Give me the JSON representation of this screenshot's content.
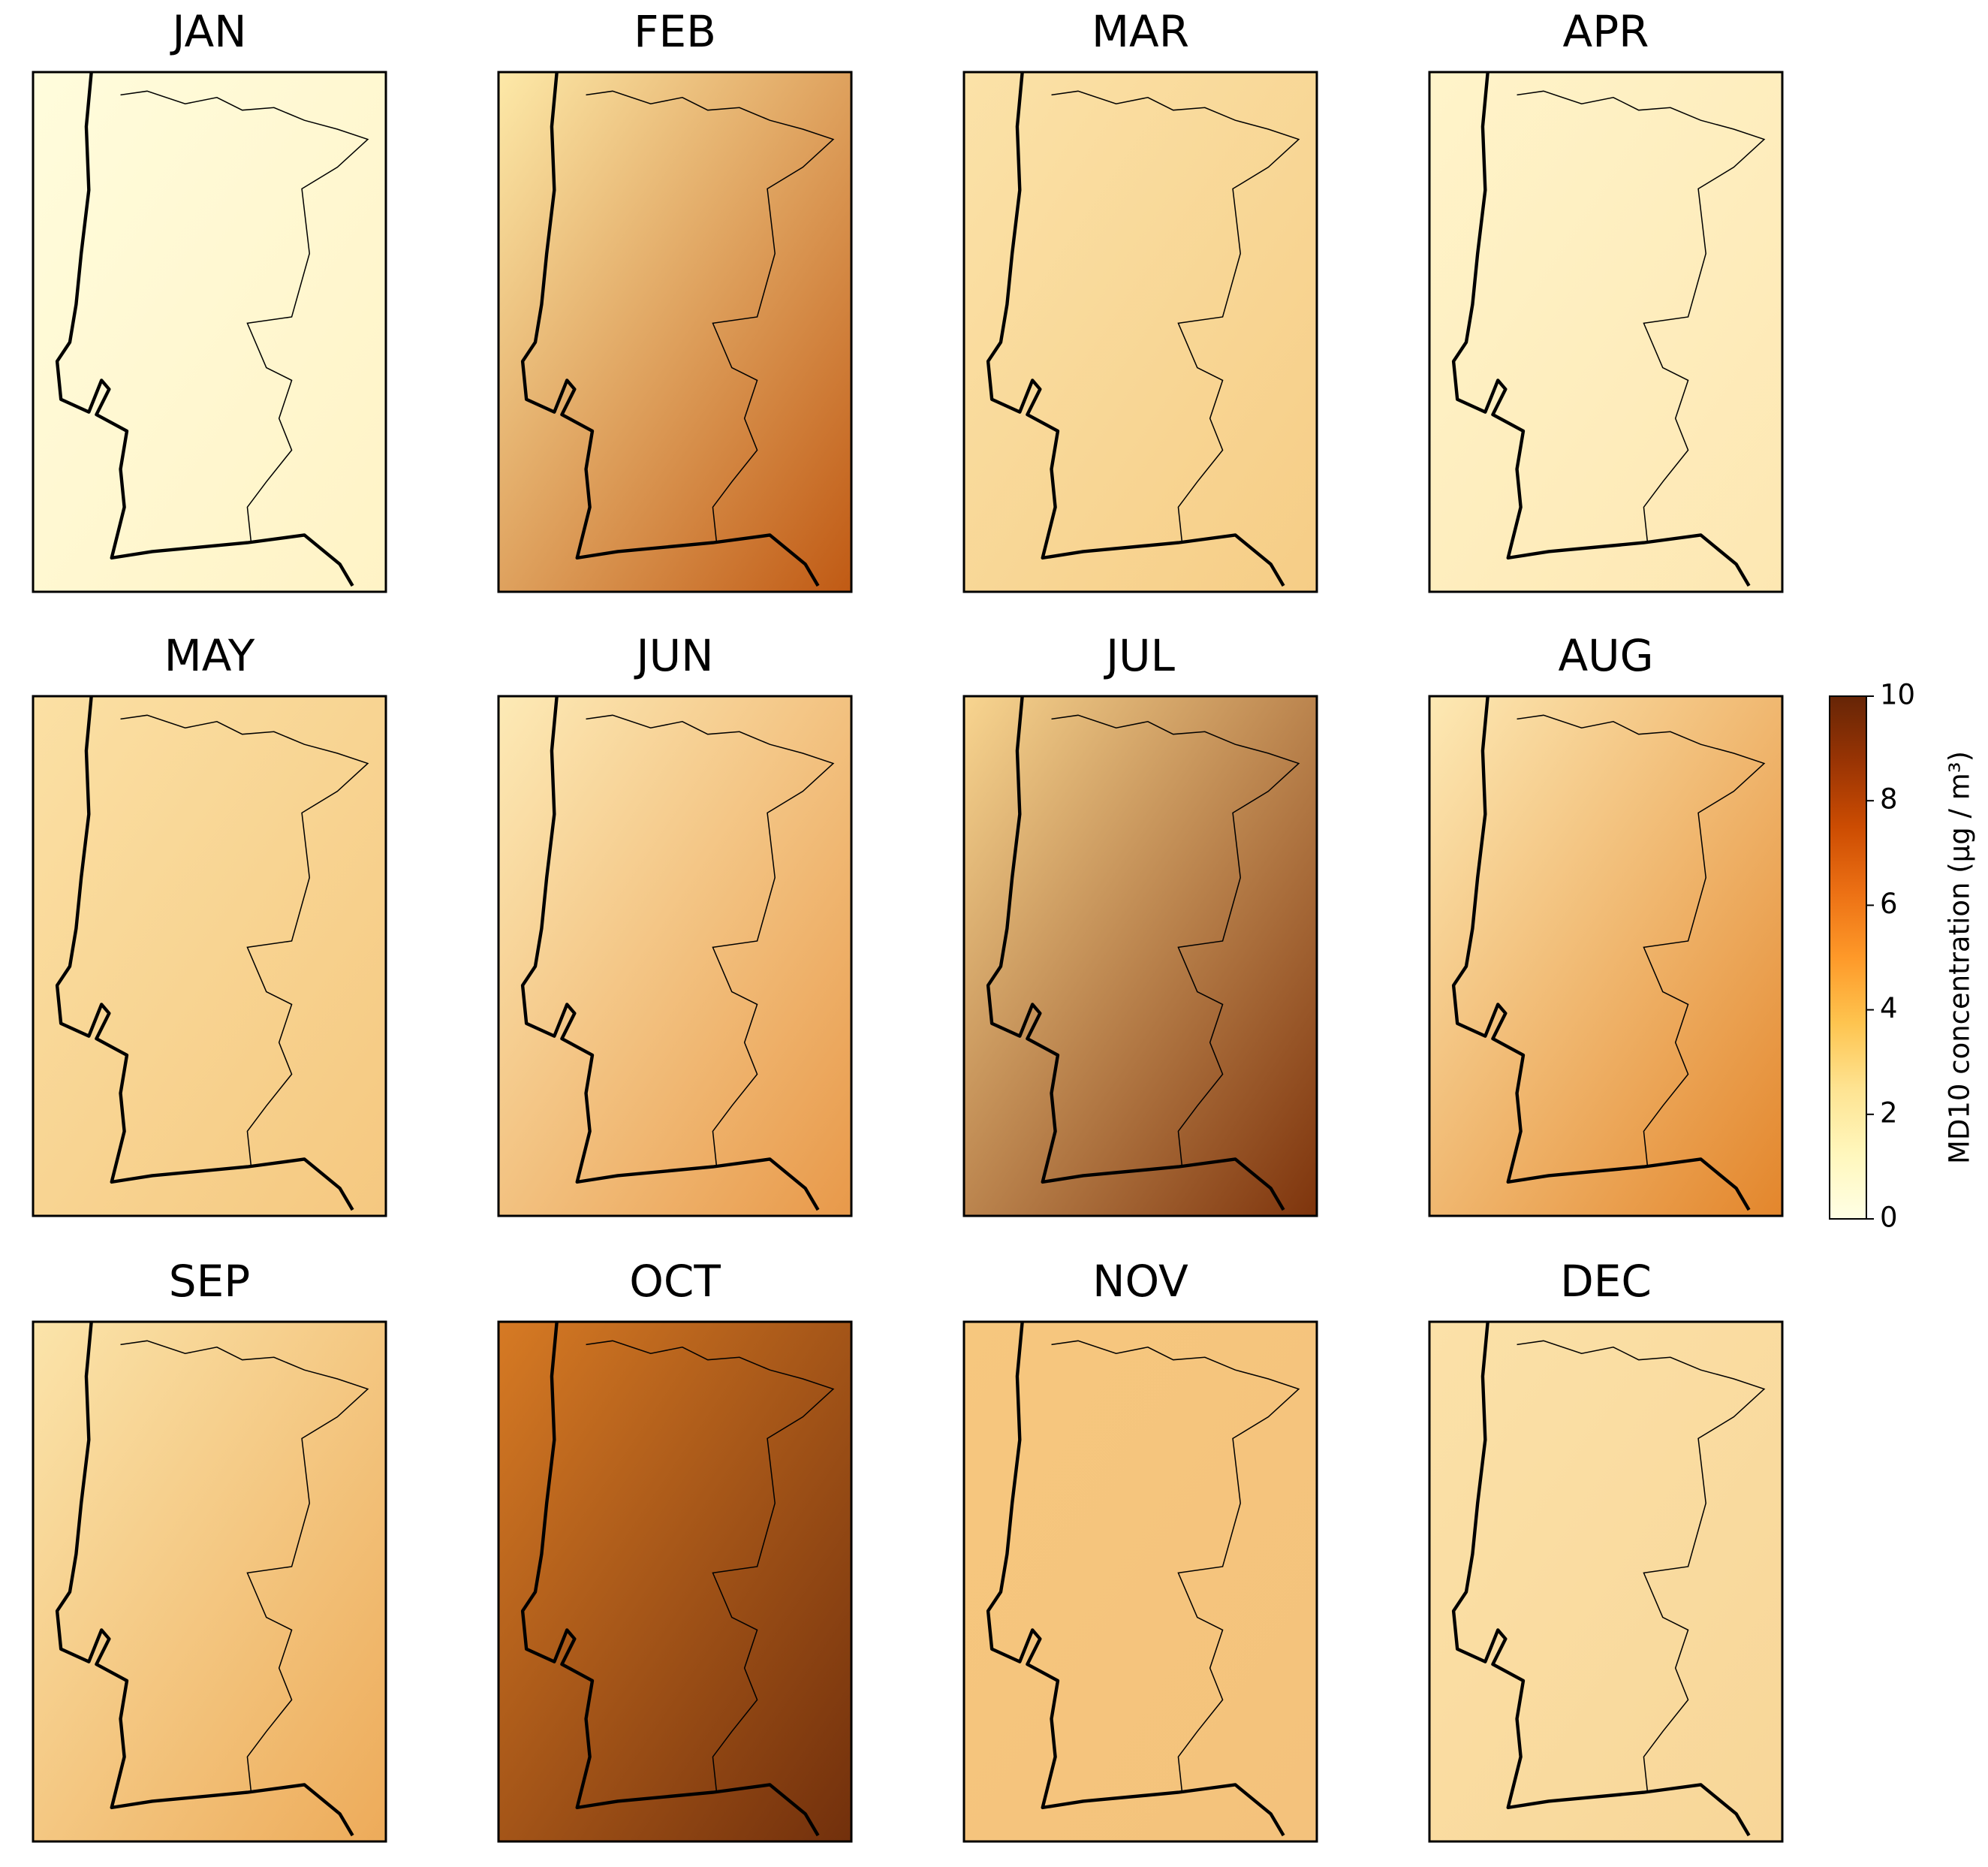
{
  "panels": [
    {
      "title": "JAN"
    },
    {
      "title": "FEB"
    },
    {
      "title": "MAR"
    },
    {
      "title": "APR"
    },
    {
      "title": "MAY"
    },
    {
      "title": "JUN"
    },
    {
      "title": "JUL"
    },
    {
      "title": "AUG"
    },
    {
      "title": "SEP"
    },
    {
      "title": "OCT"
    },
    {
      "title": "NOV"
    },
    {
      "title": "DEC"
    }
  ],
  "colorbar": {
    "label": "MD10 concentration (µg / m³)",
    "lim": [
      0,
      10
    ],
    "ticks": [
      0,
      2,
      4,
      6,
      8,
      10
    ],
    "colormap": [
      "#ffffe5",
      "#fff7bc",
      "#fee391",
      "#fec44f",
      "#fe9929",
      "#ec7014",
      "#cc4c02",
      "#993404",
      "#662506"
    ]
  }
}
